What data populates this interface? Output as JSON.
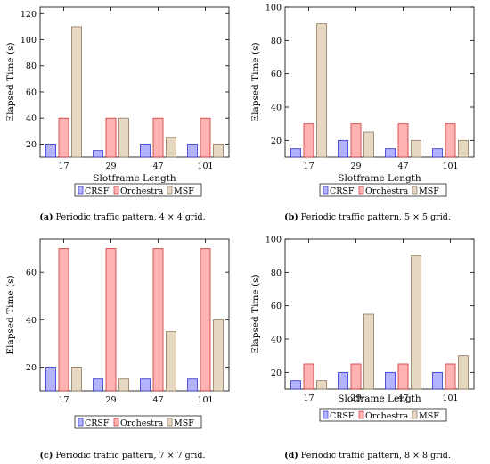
{
  "colors": {
    "CRSF": {
      "fill": "#b3b3ff",
      "stroke": "#3232cc"
    },
    "Orchestra": {
      "fill": "#ffb3b3",
      "stroke": "#cc3232"
    },
    "MSF": {
      "fill": "#e6d8c3",
      "stroke": "#8f7a5c"
    }
  },
  "chart_data": [
    {
      "type": "bar",
      "xlabel": "Slotframe Length",
      "ylabel": "Elapsed Time (s)",
      "categories": [
        "17",
        "29",
        "47",
        "101"
      ],
      "ylim": [
        10,
        125
      ],
      "yticks": [
        20,
        40,
        60,
        80,
        100,
        120
      ],
      "legend_position": "bottom",
      "series": [
        {
          "name": "CRSF",
          "values": [
            20,
            15,
            20,
            20
          ]
        },
        {
          "name": "Orchestra",
          "values": [
            40,
            40,
            40,
            40
          ]
        },
        {
          "name": "MSF",
          "values": [
            110,
            40,
            25,
            20
          ]
        }
      ],
      "caption_label": "(a)",
      "caption_text": "Periodic traffic pattern, 4 × 4 grid."
    },
    {
      "type": "bar",
      "xlabel": "Slotframe Length",
      "ylabel": "Elapsed Time (s)",
      "categories": [
        "17",
        "29",
        "47",
        "101"
      ],
      "ylim": [
        10,
        100
      ],
      "yticks": [
        20,
        40,
        60,
        80,
        100
      ],
      "legend_position": "bottom",
      "series": [
        {
          "name": "CRSF",
          "values": [
            15,
            20,
            15,
            15
          ]
        },
        {
          "name": "Orchestra",
          "values": [
            30,
            30,
            30,
            30
          ]
        },
        {
          "name": "MSF",
          "values": [
            90,
            25,
            20,
            20
          ]
        }
      ],
      "caption_label": "(b)",
      "caption_text": "Periodic traffic pattern, 5 × 5 grid."
    },
    {
      "type": "bar",
      "xlabel": "",
      "ylabel": "Elapsed Time (s)",
      "categories": [
        "17",
        "29",
        "47",
        "101"
      ],
      "ylim": [
        10,
        74
      ],
      "yticks": [
        20,
        40,
        60
      ],
      "legend_position": "bottom",
      "series": [
        {
          "name": "CRSF",
          "values": [
            20,
            15,
            15,
            15
          ]
        },
        {
          "name": "Orchestra",
          "values": [
            70,
            70,
            70,
            70
          ]
        },
        {
          "name": "MSF",
          "values": [
            20,
            15,
            35,
            40
          ]
        }
      ],
      "caption_label": "(c)",
      "caption_text": "Periodic traffic pattern, 7 × 7 grid."
    },
    {
      "type": "bar",
      "xlabel": "Slotframe Length",
      "ylabel": "Elapsed Time (s)",
      "categories": [
        "17",
        "29",
        "47",
        "101"
      ],
      "ylim": [
        10,
        100
      ],
      "yticks": [
        20,
        40,
        60,
        80,
        100
      ],
      "legend_position": "bottom",
      "series": [
        {
          "name": "CRSF",
          "values": [
            15,
            20,
            20,
            20
          ]
        },
        {
          "name": "Orchestra",
          "values": [
            25,
            25,
            25,
            25
          ]
        },
        {
          "name": "MSF",
          "values": [
            15,
            55,
            90,
            30
          ]
        }
      ],
      "caption_label": "(d)",
      "caption_text": "Periodic traffic pattern, 8 × 8 grid."
    }
  ]
}
